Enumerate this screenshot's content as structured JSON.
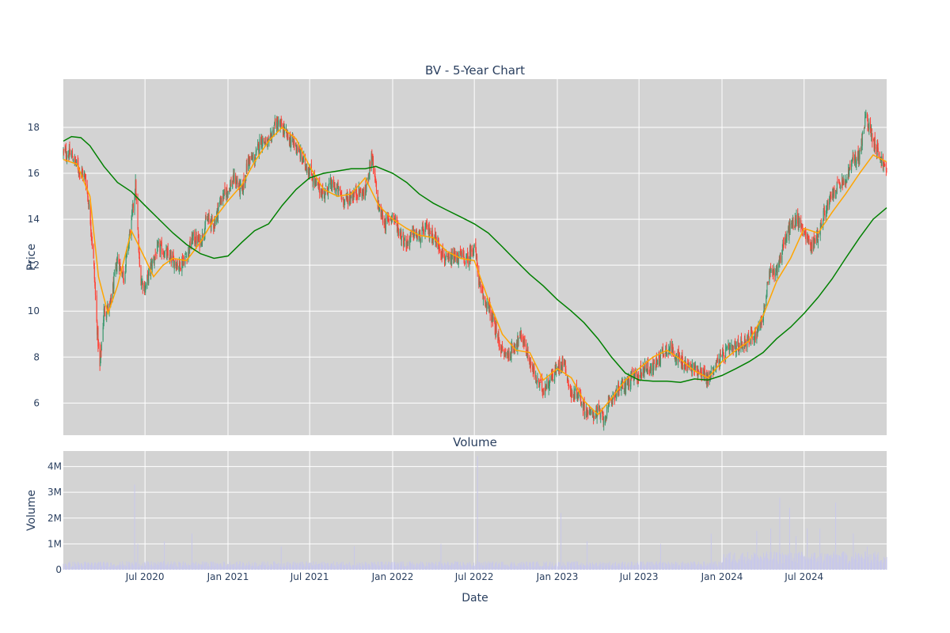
{
  "chart_data": [
    {
      "type": "candlestick",
      "title": "BV - 5-Year Chart",
      "xlabel": "",
      "ylabel": "Price",
      "ylim": [
        4.6,
        20.1
      ],
      "y_ticks": [
        6,
        8,
        10,
        12,
        14,
        16,
        18
      ],
      "grid": true,
      "x_range": [
        "2020-01-02",
        "2024-12-31"
      ],
      "colors": {
        "increasing": "#3d9970",
        "decreasing": "#ff4136",
        "ma_short": "#ffa500",
        "ma_long": "#008000",
        "plot_bg": "#d3d3d3",
        "grid": "#ffffff"
      },
      "series": [
        {
          "kind": "ohlc-close-approx",
          "x": [
            "2020-01-02",
            "2020-01-20",
            "2020-02-05",
            "2020-02-20",
            "2020-03-01",
            "2020-03-09",
            "2020-03-16",
            "2020-03-23",
            "2020-04-01",
            "2020-04-15",
            "2020-05-01",
            "2020-05-15",
            "2020-06-01",
            "2020-06-10",
            "2020-06-20",
            "2020-07-01",
            "2020-07-15",
            "2020-08-01",
            "2020-08-15",
            "2020-09-01",
            "2020-09-15",
            "2020-10-01",
            "2020-10-15",
            "2020-11-01",
            "2020-11-15",
            "2020-12-01",
            "2020-12-15",
            "2021-01-01",
            "2021-01-15",
            "2021-02-01",
            "2021-02-15",
            "2021-03-01",
            "2021-03-15",
            "2021-04-01",
            "2021-04-15",
            "2021-05-01",
            "2021-05-15",
            "2021-06-01",
            "2021-06-15",
            "2021-07-01",
            "2021-07-15",
            "2021-08-01",
            "2021-08-15",
            "2021-09-01",
            "2021-09-15",
            "2021-10-01",
            "2021-10-15",
            "2021-11-01",
            "2021-11-15",
            "2021-12-01",
            "2021-12-15",
            "2022-01-01",
            "2022-01-15",
            "2022-02-01",
            "2022-02-15",
            "2022-03-01",
            "2022-03-15",
            "2022-04-01",
            "2022-04-15",
            "2022-05-01",
            "2022-05-15",
            "2022-06-01",
            "2022-06-15",
            "2022-07-01",
            "2022-07-15",
            "2022-08-01",
            "2022-08-15",
            "2022-09-01",
            "2022-09-15",
            "2022-10-01",
            "2022-10-15",
            "2022-11-01",
            "2022-11-15",
            "2022-12-01",
            "2022-12-15",
            "2023-01-01",
            "2023-01-15",
            "2023-02-01",
            "2023-02-15",
            "2023-03-01",
            "2023-03-15",
            "2023-04-01",
            "2023-04-15",
            "2023-05-01",
            "2023-05-15",
            "2023-06-01",
            "2023-06-15",
            "2023-07-01",
            "2023-07-15",
            "2023-08-01",
            "2023-08-15",
            "2023-09-01",
            "2023-09-15",
            "2023-10-01",
            "2023-10-15",
            "2023-11-01",
            "2023-11-15",
            "2023-12-01",
            "2023-12-15",
            "2024-01-01",
            "2024-01-15",
            "2024-02-01",
            "2024-02-15",
            "2024-03-01",
            "2024-03-15",
            "2024-04-01",
            "2024-04-15",
            "2024-05-01",
            "2024-05-15",
            "2024-06-01",
            "2024-06-15",
            "2024-07-01",
            "2024-07-15",
            "2024-08-01",
            "2024-08-15",
            "2024-09-01",
            "2024-09-15",
            "2024-10-01",
            "2024-10-15",
            "2024-11-01",
            "2024-11-15",
            "2024-12-01",
            "2024-12-15",
            "2024-12-31"
          ],
          "close": [
            16.9,
            16.8,
            16.2,
            15.8,
            14.2,
            12.2,
            9.5,
            7.5,
            10.0,
            10.2,
            12.3,
            11.5,
            13.9,
            15.5,
            11.5,
            11.0,
            12.0,
            12.8,
            12.5,
            12.2,
            12.0,
            12.4,
            13.2,
            13.0,
            14.0,
            13.8,
            14.8,
            15.3,
            15.8,
            15.2,
            16.6,
            16.6,
            17.5,
            17.2,
            18.2,
            18.0,
            17.5,
            17.2,
            16.6,
            16.1,
            15.5,
            15.1,
            15.5,
            15.3,
            14.8,
            15.0,
            15.2,
            15.1,
            16.8,
            14.5,
            13.8,
            14.2,
            13.5,
            12.9,
            13.4,
            13.2,
            13.6,
            13.3,
            12.8,
            12.1,
            12.3,
            12.4,
            12.2,
            12.9,
            10.8,
            10.2,
            9.3,
            8.2,
            8.1,
            8.6,
            8.9,
            7.8,
            7.0,
            6.6,
            7.0,
            7.5,
            7.9,
            6.3,
            6.5,
            5.8,
            5.5,
            5.6,
            5.3,
            6.2,
            6.6,
            6.8,
            7.1,
            7.2,
            7.6,
            7.5,
            8.0,
            8.4,
            8.3,
            7.8,
            7.6,
            7.5,
            7.4,
            7.0,
            7.6,
            8.0,
            8.3,
            8.4,
            8.6,
            8.8,
            9.0,
            9.8,
            11.6,
            11.8,
            12.8,
            13.7,
            14.0,
            13.5,
            12.8,
            13.3,
            14.3,
            15.0,
            15.5,
            15.6,
            16.5,
            16.8,
            18.5,
            17.5,
            16.8,
            16.0
          ]
        },
        {
          "name": "",
          "kind": "moving-average-short",
          "x": [
            "2020-01-02",
            "2020-02-01",
            "2020-03-01",
            "2020-03-20",
            "2020-04-10",
            "2020-05-01",
            "2020-06-01",
            "2020-07-01",
            "2020-07-20",
            "2020-08-10",
            "2020-09-01",
            "2020-10-01",
            "2020-11-01",
            "2020-12-01",
            "2021-01-01",
            "2021-02-01",
            "2021-03-01",
            "2021-04-01",
            "2021-05-01",
            "2021-06-01",
            "2021-07-01",
            "2021-08-01",
            "2021-09-01",
            "2021-10-01",
            "2021-11-01",
            "2021-12-01",
            "2022-01-01",
            "2022-02-01",
            "2022-03-01",
            "2022-04-01",
            "2022-05-01",
            "2022-06-01",
            "2022-07-01",
            "2022-08-01",
            "2022-09-01",
            "2022-10-01",
            "2022-11-01",
            "2022-12-01",
            "2023-01-01",
            "2023-02-01",
            "2023-03-01",
            "2023-04-01",
            "2023-05-01",
            "2023-06-01",
            "2023-07-01",
            "2023-08-01",
            "2023-09-01",
            "2023-10-01",
            "2023-11-01",
            "2023-12-01",
            "2024-01-01",
            "2024-02-01",
            "2024-03-01",
            "2024-04-01",
            "2024-05-01",
            "2024-06-01",
            "2024-07-01",
            "2024-08-01",
            "2024-09-01",
            "2024-10-01",
            "2024-11-01",
            "2024-12-01",
            "2024-12-31"
          ],
          "values": [
            16.6,
            16.4,
            15.0,
            11.5,
            9.9,
            11.1,
            13.5,
            12.3,
            11.5,
            12.0,
            12.3,
            12.2,
            13.0,
            14.0,
            14.8,
            15.5,
            16.5,
            17.4,
            18.0,
            17.5,
            16.3,
            15.3,
            15.0,
            15.1,
            15.8,
            14.6,
            14.0,
            13.6,
            13.3,
            13.2,
            12.6,
            12.3,
            12.2,
            10.5,
            9.0,
            8.3,
            8.2,
            7.0,
            7.5,
            7.1,
            6.1,
            5.5,
            6.2,
            7.0,
            7.5,
            8.0,
            8.3,
            7.9,
            7.4,
            7.1,
            7.8,
            8.3,
            8.7,
            9.8,
            11.3,
            12.3,
            13.6,
            13.4,
            14.3,
            15.1,
            16.0,
            16.8,
            16.5
          ]
        },
        {
          "name": "",
          "kind": "moving-average-long",
          "x": [
            "2020-01-02",
            "2020-01-20",
            "2020-02-10",
            "2020-03-01",
            "2020-04-01",
            "2020-05-01",
            "2020-06-01",
            "2020-07-01",
            "2020-08-01",
            "2020-09-01",
            "2020-10-01",
            "2020-11-01",
            "2020-12-01",
            "2021-01-01",
            "2021-02-01",
            "2021-03-01",
            "2021-04-01",
            "2021-05-01",
            "2021-06-01",
            "2021-07-01",
            "2021-08-01",
            "2021-09-01",
            "2021-10-01",
            "2021-11-01",
            "2021-11-25",
            "2022-01-01",
            "2022-02-01",
            "2022-03-01",
            "2022-04-01",
            "2022-05-01",
            "2022-06-01",
            "2022-07-01",
            "2022-08-01",
            "2022-09-01",
            "2022-10-01",
            "2022-11-01",
            "2022-12-01",
            "2023-01-01",
            "2023-02-01",
            "2023-03-01",
            "2023-04-01",
            "2023-05-01",
            "2023-06-01",
            "2023-07-01",
            "2023-08-01",
            "2023-09-01",
            "2023-10-01",
            "2023-11-01",
            "2023-12-01",
            "2024-01-01",
            "2024-02-01",
            "2024-03-01",
            "2024-04-01",
            "2024-05-01",
            "2024-06-01",
            "2024-07-01",
            "2024-08-01",
            "2024-09-01",
            "2024-10-01",
            "2024-11-01",
            "2024-12-01",
            "2024-12-31"
          ],
          "values": [
            17.4,
            17.6,
            17.55,
            17.2,
            16.3,
            15.6,
            15.2,
            14.6,
            14.0,
            13.4,
            12.9,
            12.5,
            12.3,
            12.4,
            13.0,
            13.5,
            13.8,
            14.6,
            15.3,
            15.8,
            16.0,
            16.1,
            16.2,
            16.2,
            16.3,
            16.0,
            15.6,
            15.1,
            14.7,
            14.4,
            14.1,
            13.8,
            13.4,
            12.8,
            12.2,
            11.6,
            11.1,
            10.5,
            10.0,
            9.5,
            8.8,
            8.0,
            7.3,
            7.0,
            6.95,
            6.95,
            6.9,
            7.05,
            7.0,
            7.2,
            7.5,
            7.8,
            8.2,
            8.8,
            9.3,
            9.9,
            10.6,
            11.4,
            12.3,
            13.2,
            14.0,
            14.5
          ]
        }
      ],
      "x_ticks": [
        {
          "date": "2020-07-01",
          "label": "Jul 2020"
        },
        {
          "date": "2021-01-01",
          "label": "Jan 2021"
        },
        {
          "date": "2021-07-01",
          "label": "Jul 2021"
        },
        {
          "date": "2022-01-01",
          "label": "Jan 2022"
        },
        {
          "date": "2022-07-01",
          "label": "Jul 2022"
        },
        {
          "date": "2023-01-01",
          "label": "Jan 2023"
        },
        {
          "date": "2023-07-01",
          "label": "Jul 2023"
        },
        {
          "date": "2024-01-01",
          "label": "Jan 2024"
        },
        {
          "date": "2024-07-01",
          "label": "Jul 2024"
        }
      ]
    },
    {
      "type": "bar",
      "title": "Volume",
      "xlabel": "Date",
      "ylabel": "Volume",
      "ylim": [
        0,
        4600000
      ],
      "y_ticks": [
        {
          "value": 0,
          "label": "0"
        },
        {
          "value": 1000000,
          "label": "1M"
        },
        {
          "value": 2000000,
          "label": "2M"
        },
        {
          "value": 3000000,
          "label": "3M"
        },
        {
          "value": 4000000,
          "label": "4M"
        }
      ],
      "grid": true,
      "bar_color": "#c8c8ea",
      "x_range": [
        "2020-01-02",
        "2024-12-31"
      ],
      "spikes": [
        {
          "date": "2020-06-10",
          "value": 3300000
        },
        {
          "date": "2020-06-15",
          "value": 1000000
        },
        {
          "date": "2020-08-15",
          "value": 1100000
        },
        {
          "date": "2020-10-15",
          "value": 1400000
        },
        {
          "date": "2021-05-01",
          "value": 900000
        },
        {
          "date": "2021-10-10",
          "value": 900000
        },
        {
          "date": "2022-04-20",
          "value": 1000000
        },
        {
          "date": "2022-07-10",
          "value": 4400000
        },
        {
          "date": "2023-01-10",
          "value": 2200000
        },
        {
          "date": "2023-03-10",
          "value": 1100000
        },
        {
          "date": "2023-08-20",
          "value": 1000000
        },
        {
          "date": "2023-12-10",
          "value": 1400000
        },
        {
          "date": "2024-03-20",
          "value": 1500000
        },
        {
          "date": "2024-04-20",
          "value": 1600000
        },
        {
          "date": "2024-05-10",
          "value": 2800000
        },
        {
          "date": "2024-06-01",
          "value": 2400000
        },
        {
          "date": "2024-06-15",
          "value": 1300000
        },
        {
          "date": "2024-07-10",
          "value": 1600000
        },
        {
          "date": "2024-08-05",
          "value": 1600000
        },
        {
          "date": "2024-09-10",
          "value": 2600000
        },
        {
          "date": "2024-10-20",
          "value": 1400000
        },
        {
          "date": "2024-11-20",
          "value": 900000
        }
      ],
      "base_level": 250000,
      "base_level_2024": 550000
    }
  ]
}
